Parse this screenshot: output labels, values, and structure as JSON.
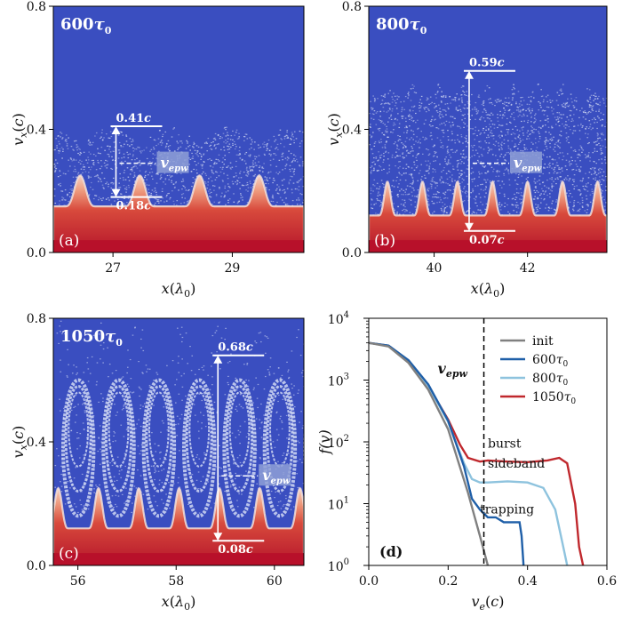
{
  "chart_data": [
    {
      "type": "heatmap",
      "panel_label": "(a)",
      "time_label_num": "600",
      "time_label_sym": "τ",
      "time_label_sub": "0",
      "xlabel_main": "x",
      "xlabel_unit": "λ",
      "xlabel_sub": "0",
      "ylabel_main": "v",
      "ylabel_sub": "x",
      "ylabel_unit": "c",
      "xlim": [
        26.0,
        30.2
      ],
      "ylim": [
        0.0,
        0.8
      ],
      "xticks": [
        27,
        29
      ],
      "yticks": [
        "0.0",
        "0.4",
        "0.8"
      ],
      "upper_bound": {
        "value": 0.41,
        "label": "0.41c"
      },
      "lower_bound": {
        "value": 0.18,
        "label": "0.18c"
      },
      "vepw_label": "v",
      "vepw_sub": "epw",
      "vepw_value": 0.29,
      "marker_x": 27.05,
      "wave_period": 1.0,
      "wave_phase": 26.45,
      "bulk_level": 0.15,
      "hump_height": 0.1,
      "noise_top": 0.41,
      "style": "trapped"
    },
    {
      "type": "heatmap",
      "panel_label": "(b)",
      "time_label_num": "800",
      "time_label_sym": "τ",
      "time_label_sub": "0",
      "xlabel_main": "x",
      "xlabel_unit": "λ",
      "xlabel_sub": "0",
      "ylabel_main": "v",
      "ylabel_sub": "x",
      "ylabel_unit": "c",
      "xlim": [
        38.6,
        43.7
      ],
      "ylim": [
        0.0,
        0.8
      ],
      "xticks": [
        40,
        42
      ],
      "yticks": [
        "0.0",
        "0.4",
        "0.8"
      ],
      "upper_bound": {
        "value": 0.59,
        "label": "0.59c"
      },
      "lower_bound": {
        "value": 0.07,
        "label": "0.07c"
      },
      "vepw_label": "v",
      "vepw_sub": "epw",
      "vepw_value": 0.29,
      "marker_x": 40.75,
      "wave_period": 0.75,
      "wave_phase": 39.0,
      "bulk_level": 0.12,
      "hump_height": 0.11,
      "noise_top": 0.55,
      "style": "sideband"
    },
    {
      "type": "heatmap",
      "panel_label": "(c)",
      "time_label_num": "1050",
      "time_label_sym": "τ",
      "time_label_sub": "0",
      "xlabel_main": "x",
      "xlabel_unit": "λ",
      "xlabel_sub": "0",
      "ylabel_main": "v",
      "ylabel_sub": "x",
      "ylabel_unit": "c",
      "xlim": [
        55.5,
        60.6
      ],
      "ylim": [
        0.0,
        0.8
      ],
      "xticks": [
        56,
        58,
        60
      ],
      "yticks": [
        "0.0",
        "0.4",
        "0.8"
      ],
      "upper_bound": {
        "value": 0.68,
        "label": "0.68c"
      },
      "lower_bound": {
        "value": 0.08,
        "label": "0.08c"
      },
      "vepw_label": "v",
      "vepw_sub": "epw",
      "vepw_value": 0.29,
      "marker_x": 58.85,
      "wave_period": 0.82,
      "wave_phase": 55.6,
      "bulk_level": 0.12,
      "hump_height": 0.13,
      "noise_top": 0.66,
      "style": "burst"
    },
    {
      "type": "line",
      "panel_label": "(d)",
      "xlabel_main": "v",
      "xlabel_sub": "e",
      "xlabel_unit": "c",
      "ylabel": "f(v)",
      "xlim": [
        0.0,
        0.6
      ],
      "ylog": true,
      "ylim": [
        1,
        10000
      ],
      "xticks": [
        "0.0",
        "0.2",
        "0.4",
        "0.6"
      ],
      "yticks_exp": [
        "0",
        "1",
        "2",
        "3",
        "4"
      ],
      "ytick_base": "10",
      "vepw_label": "v",
      "vepw_sub": "epw",
      "vepw_value": 0.29,
      "legend_position": "top-right",
      "annotations": [
        {
          "text": "burst",
          "x": 0.3,
          "y": 80
        },
        {
          "text": "sideband",
          "x": 0.3,
          "y": 38
        },
        {
          "text": "trapping",
          "x": 0.28,
          "y": 7
        }
      ],
      "series": [
        {
          "name": "init",
          "color": "#808080",
          "x": [
            0,
            0.05,
            0.1,
            0.15,
            0.2,
            0.25,
            0.28,
            0.3
          ],
          "y": [
            4000,
            3500,
            1900,
            700,
            160,
            15,
            3,
            1
          ]
        },
        {
          "name": "600",
          "name_sym": "τ",
          "name_sub": "0",
          "color": "#1f5fa8",
          "x": [
            0,
            0.05,
            0.1,
            0.15,
            0.2,
            0.24,
            0.26,
            0.28,
            0.3,
            0.32,
            0.34,
            0.36,
            0.38,
            0.385,
            0.39
          ],
          "y": [
            4000,
            3600,
            2100,
            850,
            220,
            40,
            12,
            8,
            6,
            6,
            5,
            5,
            5,
            3,
            1
          ]
        },
        {
          "name": "800",
          "name_sym": "τ",
          "name_sub": "0",
          "color": "#8ec3de",
          "x": [
            0,
            0.05,
            0.1,
            0.15,
            0.2,
            0.24,
            0.26,
            0.28,
            0.3,
            0.35,
            0.4,
            0.44,
            0.47,
            0.49,
            0.5
          ],
          "y": [
            4000,
            3600,
            2050,
            800,
            210,
            45,
            25,
            22,
            22,
            23,
            22,
            18,
            8,
            2,
            1
          ]
        },
        {
          "name": "1050",
          "name_sym": "τ",
          "name_sub": "0",
          "color": "#c0282d",
          "x": [
            0,
            0.05,
            0.1,
            0.15,
            0.2,
            0.23,
            0.25,
            0.28,
            0.3,
            0.35,
            0.4,
            0.45,
            0.48,
            0.5,
            0.52,
            0.53,
            0.54
          ],
          "y": [
            4000,
            3600,
            2050,
            800,
            230,
            90,
            55,
            48,
            50,
            48,
            47,
            50,
            55,
            45,
            10,
            2,
            1
          ]
        }
      ]
    }
  ]
}
